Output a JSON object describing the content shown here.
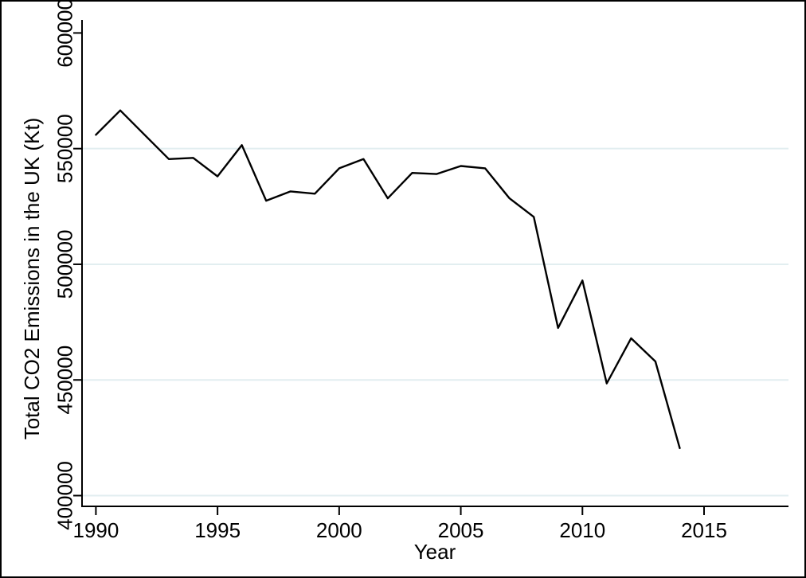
{
  "chart_data": {
    "type": "line",
    "xlabel": "Year",
    "ylabel": "Total CO2 Emissions in the UK (Kt)",
    "x": [
      1990,
      1991,
      1992,
      1993,
      1994,
      1995,
      1996,
      1997,
      1998,
      1999,
      2000,
      2001,
      2002,
      2003,
      2004,
      2005,
      2006,
      2007,
      2008,
      2009,
      2010,
      2011,
      2012,
      2013,
      2014
    ],
    "values": [
      556000,
      566500,
      556000,
      545500,
      546000,
      538000,
      551500,
      527500,
      531500,
      530500,
      541500,
      545500,
      528500,
      539500,
      539000,
      542500,
      541500,
      528500,
      520500,
      472500,
      493000,
      448500,
      468000,
      458000,
      420500
    ],
    "series_name": "Total CO2 Emissions in the UK (Kt)",
    "xticks": {
      "values": [
        1990,
        1995,
        2000,
        2005,
        2010,
        2015
      ],
      "labels": [
        "1990",
        "1995",
        "2000",
        "2005",
        "2010",
        "2015"
      ]
    },
    "yticks": {
      "values": [
        400000,
        450000,
        500000,
        550000,
        600000
      ],
      "labels": [
        "400000",
        "450000",
        "500000",
        "550000",
        "600000"
      ],
      "gridlines_at": [
        400000,
        450000,
        500000,
        550000
      ]
    },
    "xlim": [
      1989.43,
      2018.47
    ],
    "ylim": [
      395350,
      605650
    ],
    "grid": "horizontal",
    "legend": "none",
    "colors": {
      "line": "#000000",
      "grid": "#e2eef0",
      "axis": "#000000",
      "text": "#000000",
      "background": "#ffffff",
      "border": "#000000"
    }
  }
}
